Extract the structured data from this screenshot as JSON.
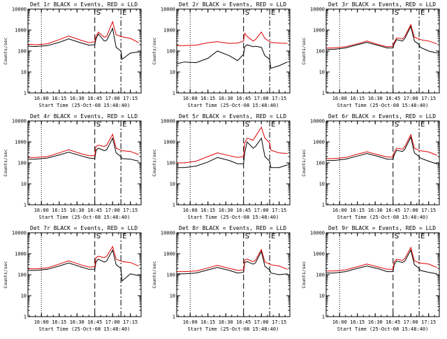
{
  "figure": {
    "xlabel": "Start Time (25-Oct-08 15:48:40)",
    "ylabel": "Counts/sec",
    "xticks": [
      "16:00",
      "16:15",
      "16:30",
      "16:45",
      "17:00",
      "17:15"
    ],
    "yticks": [
      "1",
      "10",
      "100",
      "1000",
      "10000"
    ],
    "colors": {
      "events": "#000000",
      "lld": "#e00000"
    }
  },
  "chart_data": [
    {
      "type": "line",
      "title": "Det 1r BLACK = Events, RED = LLD",
      "y_scale": "log",
      "ylim": [
        1,
        10000
      ],
      "xlim": [
        "15:48:40",
        "17:24:00"
      ],
      "x": [
        "15:49",
        "15:55",
        "16:05",
        "16:15",
        "16:23",
        "16:33",
        "16:40",
        "16:45",
        "16:46",
        "16:48",
        "16:53",
        "16:55",
        "17:00",
        "17:03",
        "17:07",
        "17:08",
        "17:15",
        "17:22"
      ],
      "annotations": [
        {
          "text": "S",
          "x": "16:45",
          "line": "dashed"
        },
        {
          "text": "E",
          "x": "17:07",
          "line": "dash-dot"
        },
        {
          "x": "16:00",
          "line": "dotted"
        }
      ],
      "series": [
        {
          "name": "Events",
          "color": "#000000",
          "values": [
            170,
            165,
            180,
            260,
            380,
            250,
            190,
            200,
            380,
            650,
            300,
            320,
            1200,
            150,
            100,
            40,
            80,
            90
          ]
        },
        {
          "name": "LLD",
          "color": "#e00000",
          "values": [
            210,
            200,
            220,
            350,
            520,
            330,
            250,
            280,
            500,
            800,
            450,
            500,
            2500,
            600,
            500,
            480,
            400,
            250
          ]
        }
      ]
    },
    {
      "type": "line",
      "title": "Det 2r BLACK = Events, RED = LLD",
      "y_scale": "log",
      "ylim": [
        1,
        10000
      ],
      "xlim": [
        "15:48:40",
        "17:24:00"
      ],
      "x": [
        "15:49",
        "15:55",
        "16:05",
        "16:15",
        "16:23",
        "16:33",
        "16:40",
        "16:45",
        "16:46",
        "16:48",
        "16:53",
        "16:55",
        "17:00",
        "17:03",
        "17:07",
        "17:08",
        "17:15",
        "17:22"
      ],
      "annotations": [
        {
          "text": "S",
          "x": "16:45",
          "line": "dashed"
        },
        {
          "text": "E",
          "x": "17:07",
          "line": "dash-dot"
        },
        {
          "x": "16:00",
          "line": "dotted"
        }
      ],
      "series": [
        {
          "name": "Events",
          "color": "#000000",
          "values": [
            25,
            30,
            28,
            45,
            100,
            60,
            35,
            70,
            160,
            200,
            160,
            170,
            150,
            60,
            40,
            15,
            20,
            30
          ]
        },
        {
          "name": "LLD",
          "color": "#e00000",
          "values": [
            180,
            180,
            190,
            250,
            280,
            230,
            240,
            300,
            700,
            500,
            300,
            350,
            800,
            400,
            280,
            260,
            240,
            230
          ]
        }
      ]
    },
    {
      "type": "line",
      "title": "Det 3r BLACK = Events, RED = LLD",
      "y_scale": "log",
      "ylim": [
        1,
        10000
      ],
      "xlim": [
        "15:48:40",
        "17:24:00"
      ],
      "x": [
        "15:49",
        "15:55",
        "16:05",
        "16:15",
        "16:23",
        "16:33",
        "16:40",
        "16:45",
        "16:46",
        "16:48",
        "16:53",
        "16:55",
        "17:00",
        "17:03",
        "17:07",
        "17:08",
        "17:15",
        "17:22"
      ],
      "annotations": [
        {
          "text": "S",
          "x": "16:45",
          "line": "dashed"
        },
        {
          "text": "E",
          "x": "17:07",
          "line": "dash-dot"
        },
        {
          "x": "16:00",
          "line": "dotted"
        }
      ],
      "series": [
        {
          "name": "Events",
          "color": "#000000",
          "values": [
            120,
            120,
            140,
            200,
            260,
            180,
            140,
            140,
            220,
            350,
            300,
            400,
            1500,
            300,
            200,
            150,
            100,
            80
          ]
        },
        {
          "name": "LLD",
          "color": "#e00000",
          "values": [
            140,
            140,
            160,
            220,
            300,
            200,
            160,
            170,
            260,
            420,
            380,
            500,
            1800,
            450,
            380,
            350,
            300,
            220
          ]
        }
      ]
    },
    {
      "type": "line",
      "title": "Det 4r BLACK = Events, RED = LLD",
      "y_scale": "log",
      "ylim": [
        1,
        10000
      ],
      "xlim": [
        "15:48:40",
        "17:24:00"
      ],
      "x": [
        "15:49",
        "15:55",
        "16:05",
        "16:15",
        "16:23",
        "16:33",
        "16:40",
        "16:45",
        "16:46",
        "16:48",
        "16:53",
        "16:55",
        "17:00",
        "17:03",
        "17:07",
        "17:08",
        "17:15",
        "17:22"
      ],
      "annotations": [
        {
          "text": "S",
          "x": "16:45",
          "line": "dashed"
        },
        {
          "text": "E",
          "x": "17:07",
          "line": "dash-dot"
        },
        {
          "x": "16:00",
          "line": "dotted"
        }
      ],
      "series": [
        {
          "name": "Events",
          "color": "#000000",
          "values": [
            150,
            150,
            170,
            240,
            320,
            220,
            170,
            160,
            380,
            500,
            380,
            420,
            1500,
            300,
            200,
            160,
            150,
            120
          ]
        },
        {
          "name": "LLD",
          "color": "#e00000",
          "values": [
            180,
            180,
            200,
            300,
            420,
            280,
            220,
            220,
            600,
            700,
            600,
            700,
            2300,
            500,
            400,
            380,
            350,
            250
          ]
        }
      ]
    },
    {
      "type": "line",
      "title": "Det 5r BLACK = Events, RED = LLD",
      "y_scale": "log",
      "ylim": [
        1,
        10000
      ],
      "xlim": [
        "15:48:40",
        "17:24:00"
      ],
      "x": [
        "15:49",
        "15:55",
        "16:05",
        "16:15",
        "16:23",
        "16:33",
        "16:40",
        "16:45",
        "16:46",
        "16:48",
        "16:53",
        "16:55",
        "17:00",
        "17:03",
        "17:07",
        "17:08",
        "17:15",
        "17:22"
      ],
      "annotations": [
        {
          "text": "S",
          "x": "16:45",
          "line": "dashed"
        },
        {
          "text": "E",
          "x": "17:07",
          "line": "dash-dot"
        },
        {
          "x": "16:00",
          "line": "dotted"
        }
      ],
      "series": [
        {
          "name": "Events",
          "color": "#000000",
          "values": [
            60,
            60,
            70,
            110,
            180,
            130,
            90,
            90,
            300,
            1000,
            500,
            600,
            1500,
            200,
            120,
            60,
            60,
            80
          ]
        },
        {
          "name": "LLD",
          "color": "#e00000",
          "values": [
            100,
            100,
            120,
            200,
            300,
            220,
            180,
            200,
            900,
            1500,
            1200,
            1800,
            5000,
            1500,
            900,
            400,
            300,
            280
          ]
        }
      ]
    },
    {
      "type": "line",
      "title": "Det 6r BLACK = Events, RED = LLD",
      "y_scale": "log",
      "ylim": [
        1,
        10000
      ],
      "xlim": [
        "15:48:40",
        "17:24:00"
      ],
      "x": [
        "15:49",
        "15:55",
        "16:05",
        "16:15",
        "16:23",
        "16:33",
        "16:40",
        "16:45",
        "16:46",
        "16:48",
        "16:53",
        "16:55",
        "17:00",
        "17:03",
        "17:07",
        "17:08",
        "17:15",
        "17:22"
      ],
      "annotations": [
        {
          "text": "S",
          "x": "16:45",
          "line": "dashed"
        },
        {
          "text": "E",
          "x": "17:07",
          "line": "dash-dot"
        },
        {
          "x": "16:00",
          "line": "dotted"
        }
      ],
      "series": [
        {
          "name": "Events",
          "color": "#000000",
          "values": [
            130,
            130,
            150,
            210,
            280,
            200,
            150,
            150,
            240,
            400,
            350,
            450,
            1700,
            300,
            200,
            170,
            120,
            90
          ]
        },
        {
          "name": "LLD",
          "color": "#e00000",
          "values": [
            160,
            160,
            180,
            260,
            340,
            240,
            190,
            190,
            320,
            500,
            450,
            600,
            2200,
            500,
            400,
            380,
            330,
            230
          ]
        }
      ]
    },
    {
      "type": "line",
      "title": "Det 7r BLACK = Events, RED = LLD",
      "y_scale": "log",
      "ylim": [
        1,
        10000
      ],
      "xlim": [
        "15:48:40",
        "17:24:00"
      ],
      "x": [
        "15:49",
        "15:55",
        "16:05",
        "16:15",
        "16:23",
        "16:33",
        "16:40",
        "16:45",
        "16:46",
        "16:48",
        "16:53",
        "16:55",
        "17:00",
        "17:03",
        "17:07",
        "17:08",
        "17:15",
        "17:22"
      ],
      "annotations": [
        {
          "text": "S",
          "x": "16:45",
          "line": "dashed"
        },
        {
          "text": "E",
          "x": "17:07",
          "line": "dash-dot"
        },
        {
          "x": "16:00",
          "line": "dotted"
        }
      ],
      "series": [
        {
          "name": "Events",
          "color": "#000000",
          "values": [
            160,
            160,
            180,
            260,
            360,
            240,
            180,
            180,
            400,
            550,
            400,
            450,
            1500,
            300,
            200,
            50,
            110,
            90
          ]
        },
        {
          "name": "LLD",
          "color": "#e00000",
          "values": [
            190,
            190,
            210,
            320,
            460,
            300,
            230,
            240,
            650,
            750,
            650,
            750,
            2200,
            550,
            450,
            420,
            380,
            260
          ]
        }
      ]
    },
    {
      "type": "line",
      "title": "Det 8r BLACK = Events, RED = LLD",
      "y_scale": "log",
      "ylim": [
        1,
        10000
      ],
      "xlim": [
        "15:48:40",
        "17:24:00"
      ],
      "x": [
        "15:49",
        "15:55",
        "16:05",
        "16:15",
        "16:23",
        "16:33",
        "16:40",
        "16:45",
        "16:46",
        "16:48",
        "16:53",
        "16:55",
        "17:00",
        "17:03",
        "17:07",
        "17:08",
        "17:15",
        "17:22"
      ],
      "annotations": [
        {
          "text": "S",
          "x": "16:45",
          "line": "dashed"
        },
        {
          "text": "E",
          "x": "17:07",
          "line": "dash-dot"
        },
        {
          "x": "16:00",
          "line": "dotted"
        }
      ],
      "series": [
        {
          "name": "Events",
          "color": "#000000",
          "values": [
            110,
            110,
            120,
            170,
            220,
            160,
            120,
            130,
            380,
            420,
            320,
            360,
            1300,
            250,
            170,
            120,
            100,
            110
          ]
        },
        {
          "name": "LLD",
          "color": "#e00000",
          "values": [
            140,
            140,
            150,
            210,
            280,
            200,
            160,
            170,
            500,
            550,
            420,
            480,
            1600,
            400,
            320,
            300,
            260,
            180
          ]
        }
      ]
    },
    {
      "type": "line",
      "title": "Det 9r BLACK = Events, RED = LLD",
      "y_scale": "log",
      "ylim": [
        1,
        10000
      ],
      "xlim": [
        "15:48:40",
        "17:24:00"
      ],
      "x": [
        "15:49",
        "15:55",
        "16:05",
        "16:15",
        "16:23",
        "16:33",
        "16:40",
        "16:45",
        "16:46",
        "16:48",
        "16:53",
        "16:55",
        "17:00",
        "17:03",
        "17:07",
        "17:08",
        "17:15",
        "17:22"
      ],
      "annotations": [
        {
          "text": "S",
          "x": "16:45",
          "line": "dashed"
        },
        {
          "text": "E",
          "x": "17:07",
          "line": "dash-dot"
        },
        {
          "x": "16:00",
          "line": "dotted"
        }
      ],
      "series": [
        {
          "name": "Events",
          "color": "#000000",
          "values": [
            120,
            120,
            140,
            200,
            260,
            190,
            140,
            140,
            300,
            450,
            380,
            450,
            1500,
            300,
            200,
            160,
            130,
            110
          ]
        },
        {
          "name": "LLD",
          "color": "#e00000",
          "values": [
            150,
            150,
            170,
            240,
            320,
            230,
            180,
            180,
            400,
            550,
            480,
            600,
            2000,
            450,
            380,
            360,
            320,
            220
          ]
        }
      ]
    }
  ]
}
